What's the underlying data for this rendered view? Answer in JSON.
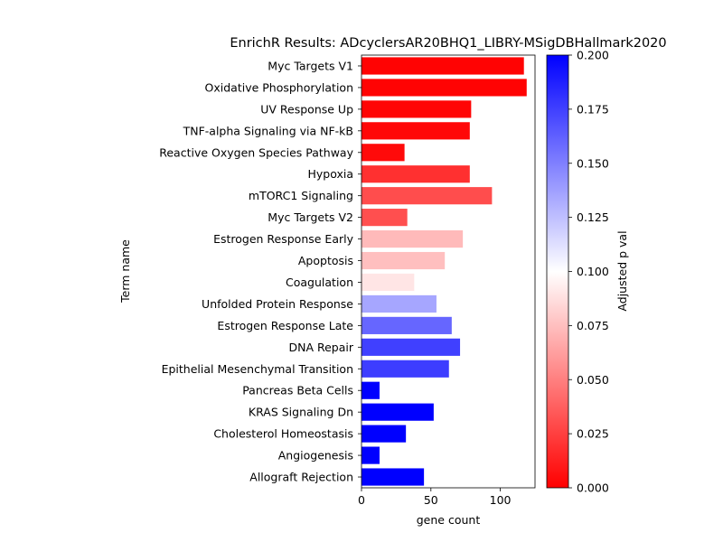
{
  "chart_data": {
    "type": "bar",
    "orientation": "horizontal",
    "title": "EnrichR Results: ADcyclersAR20BHQ1_LIBRY-MSigDBHallmark2020",
    "xlabel": "gene count",
    "ylabel": "Term name",
    "xlim": [
      0,
      125
    ],
    "xticks": [
      0,
      50,
      100
    ],
    "categories": [
      "Myc Targets V1",
      "Oxidative Phosphorylation",
      "UV Response Up",
      "TNF-alpha Signaling via NF-kB",
      "Reactive Oxygen Species Pathway",
      "Hypoxia",
      "mTORC1 Signaling",
      "Myc Targets V2",
      "Estrogen Response Early",
      "Apoptosis",
      "Coagulation",
      "Unfolded Protein Response",
      "Estrogen Response Late",
      "DNA Repair",
      "Epithelial Mesenchymal Transition",
      "Pancreas Beta Cells",
      "KRAS Signaling Dn",
      "Cholesterol Homeostasis",
      "Angiogenesis",
      "Allograft Rejection"
    ],
    "values": [
      117,
      119,
      79,
      78,
      31,
      78,
      94,
      33,
      73,
      60,
      38,
      54,
      65,
      71,
      63,
      13,
      52,
      32,
      13,
      45
    ],
    "adjusted_p": [
      0.001,
      0.001,
      0.002,
      0.003,
      0.004,
      0.019,
      0.03,
      0.031,
      0.073,
      0.075,
      0.09,
      0.135,
      0.16,
      0.175,
      0.176,
      0.2,
      0.2,
      0.2,
      0.2,
      0.2
    ],
    "colorbar": {
      "label": "Adjusted p val",
      "range": [
        0,
        0.2
      ],
      "ticks": [
        "0.000",
        "0.025",
        "0.050",
        "0.075",
        "0.100",
        "0.125",
        "0.150",
        "0.175",
        "0.200"
      ],
      "colormap": [
        "#ff0000",
        "#ffffff",
        "#0000ff"
      ]
    }
  }
}
